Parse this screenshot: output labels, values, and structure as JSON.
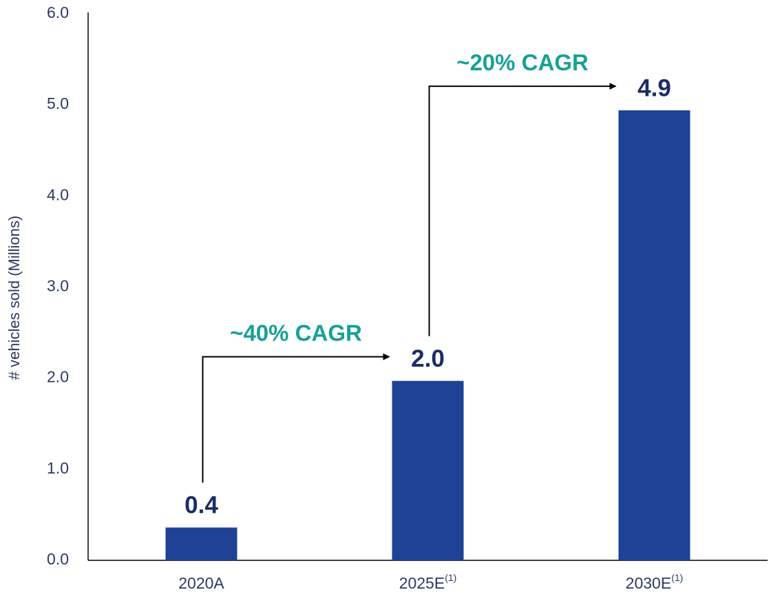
{
  "chart_data": {
    "type": "bar",
    "y_label": "# vehicles sold (Millions)",
    "categories": [
      "2020A",
      "2025E",
      "2030E"
    ],
    "category_footnotes": [
      null,
      "(1)",
      "(1)"
    ],
    "values": [
      0.36,
      1.97,
      4.94
    ],
    "value_labels": [
      "0.4",
      "2.0",
      "4.9"
    ],
    "color": "#1f4196",
    "ylim": [
      0,
      6
    ],
    "yticks": [
      {
        "value": 0,
        "label": "0.0"
      },
      {
        "value": 1,
        "label": "1.0"
      },
      {
        "value": 2,
        "label": "2.0"
      },
      {
        "value": 3,
        "label": "3.0"
      },
      {
        "value": 4,
        "label": "4.0"
      },
      {
        "value": 5,
        "label": "5.0"
      },
      {
        "value": 6,
        "label": "6.0"
      }
    ],
    "grid": false,
    "annotations": [
      "~40% CAGR",
      "~20% CAGR"
    ]
  }
}
